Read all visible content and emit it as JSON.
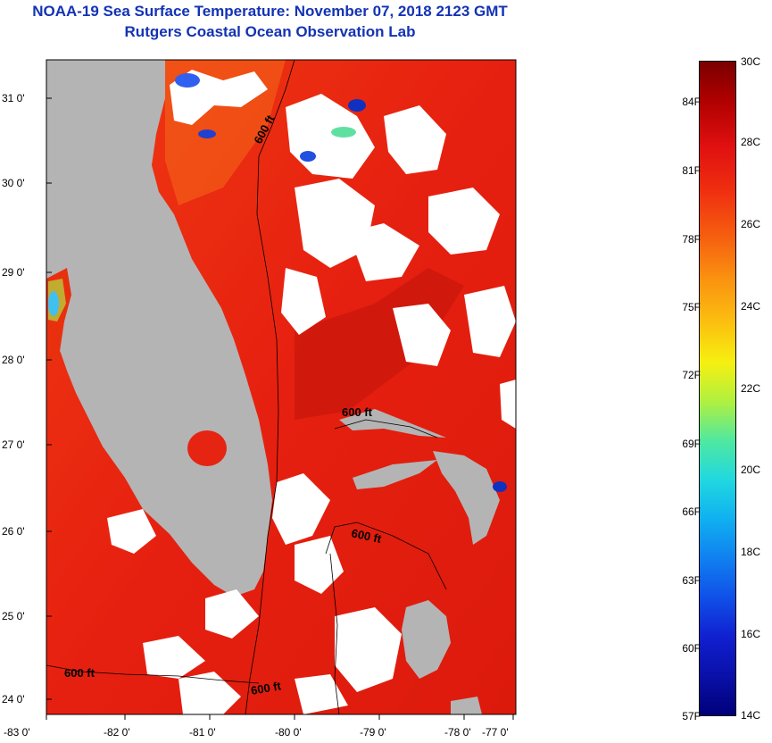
{
  "title": "NOAA-19 Sea Surface Temperature:  November 07, 2018 2123 GMT",
  "subtitle": "Rutgers Coastal Ocean Observation Lab",
  "map": {
    "lat_labels": [
      "31 0'",
      "30 0'",
      "29 0'",
      "28 0'",
      "27 0'",
      "26 0'",
      "25 0'",
      "24 0'"
    ],
    "lon_labels": [
      "-83 0'",
      "-82 0'",
      "-81 0'",
      "-80 0'",
      "-79 0'",
      "-78 0'",
      "-77 0'"
    ],
    "contour_labels": [
      "600 ft",
      "600 ft",
      "600 ft",
      "600 ft",
      "600 ft"
    ],
    "colors": {
      "land": "#b4b4b4",
      "sea_warm": "#e8200c",
      "cloud": "#ffffff"
    }
  },
  "colorbar": {
    "celsius": [
      "30C",
      "28C",
      "26C",
      "24C",
      "22C",
      "20C",
      "18C",
      "16C",
      "14C"
    ],
    "fahrenheit": [
      "84F",
      "81F",
      "78F",
      "75F",
      "72F",
      "69F",
      "66F",
      "63F",
      "60F",
      "57F"
    ]
  }
}
